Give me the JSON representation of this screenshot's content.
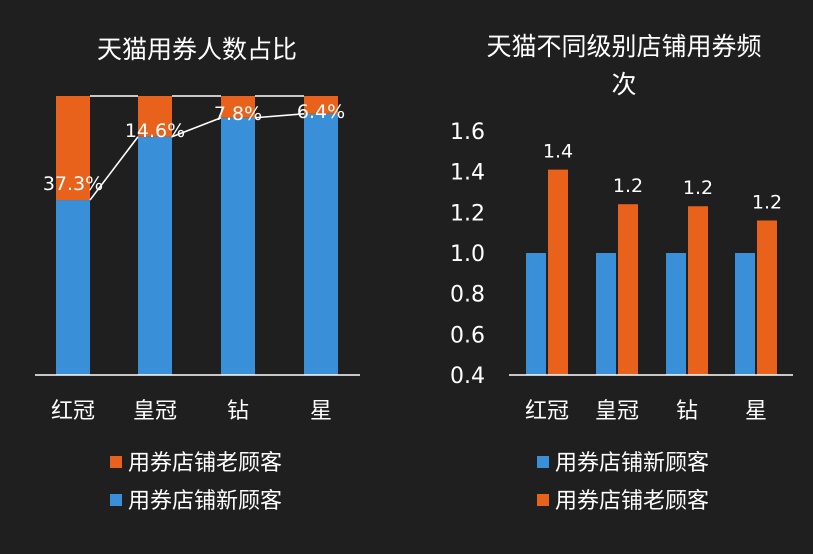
{
  "chart_data": [
    {
      "type": "bar",
      "stacked": true,
      "normalized": true,
      "title": "天猫用券人数占比",
      "categories": [
        "红冠",
        "皇冠",
        "钻",
        "星"
      ],
      "series": [
        {
          "name": "用券店铺新顾客",
          "values": [
            62.7,
            85.4,
            92.2,
            93.6
          ],
          "color": "#3a8fd9"
        },
        {
          "name": "用券店铺老顾客",
          "values": [
            37.3,
            14.6,
            7.8,
            6.4
          ],
          "color": "#e8621c",
          "labels": [
            "37.3%",
            "14.6%",
            "7.8%",
            "6.4%"
          ]
        }
      ],
      "ylim": [
        0,
        100
      ],
      "connector_lines": true,
      "legend_position": "bottom",
      "legend_order": [
        "用券店铺老顾客",
        "用券店铺新顾客"
      ],
      "grid": false
    },
    {
      "type": "bar",
      "title": "天猫不同级别店铺用券频次",
      "categories": [
        "红冠",
        "皇冠",
        "钻",
        "星"
      ],
      "series": [
        {
          "name": "用券店铺新顾客",
          "values": [
            1.0,
            1.0,
            1.0,
            1.0
          ],
          "color": "#3a8fd9"
        },
        {
          "name": "用券店铺老顾客",
          "values": [
            1.41,
            1.24,
            1.23,
            1.16
          ],
          "color": "#e8621c",
          "labels": [
            "1.4",
            "1.2",
            "1.2",
            "1.2"
          ]
        }
      ],
      "ylim": [
        0.4,
        1.6
      ],
      "yticks": [
        "0.4",
        "0.6",
        "0.8",
        "1.0",
        "1.2",
        "1.4",
        "1.6"
      ],
      "legend_position": "bottom",
      "legend_order": [
        "用券店铺新顾客",
        "用券店铺老顾客"
      ],
      "grid": false
    }
  ]
}
